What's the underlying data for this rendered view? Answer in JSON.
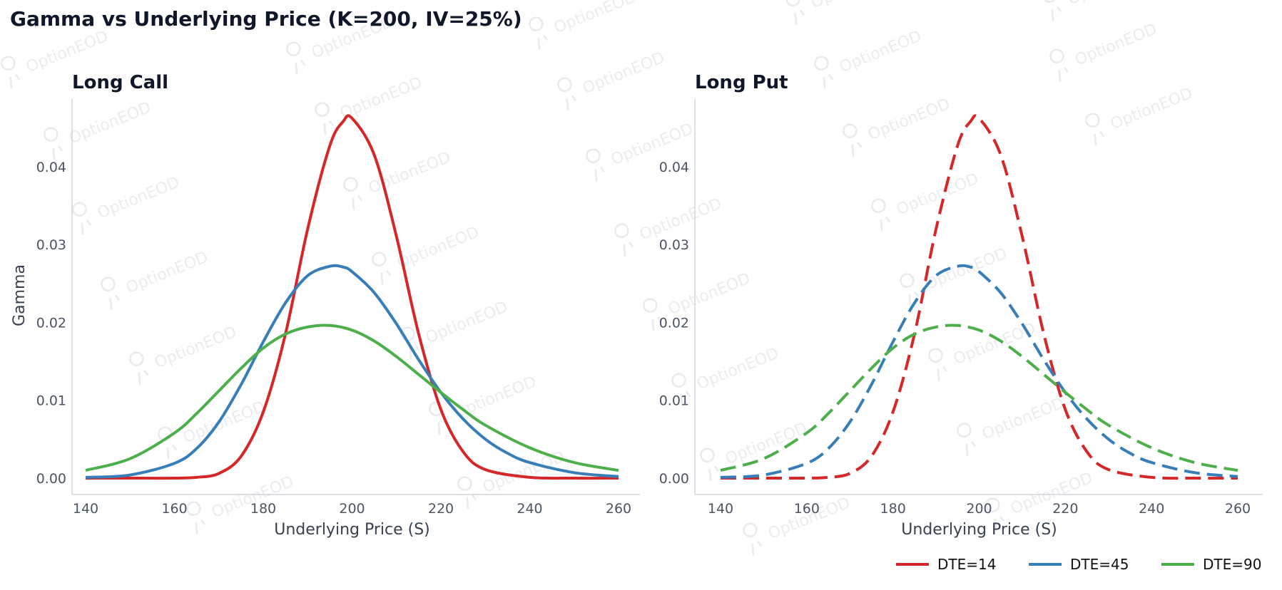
{
  "figure": {
    "suptitle": "Gamma vs Underlying Price (K=200, IV=25%)",
    "watermark": "OptionEOD"
  },
  "chart_data": [
    {
      "type": "line",
      "title": "Long Call",
      "xlabel": "Underlying Price (S)",
      "ylabel": "Gamma",
      "xlim": [
        134,
        262
      ],
      "ylim": [
        -0.0023,
        0.0485
      ],
      "xticks": [
        140,
        160,
        180,
        200,
        220,
        240,
        260
      ],
      "yticks": [
        0.0,
        0.01,
        0.02,
        0.03,
        0.04
      ],
      "ytick_labels": [
        "0.00",
        "0.01",
        "0.02",
        "0.03",
        "0.04"
      ],
      "line_style": "solid",
      "grid": false,
      "series": [
        {
          "name": "DTE=14",
          "color": "#d62728",
          "x": [
            140,
            150,
            160,
            165,
            170,
            175,
            180,
            185,
            190,
            195,
            198,
            200,
            205,
            210,
            215,
            220,
            225,
            230,
            240,
            250,
            260
          ],
          "y": [
            0,
            0,
            0.0,
            0.0001,
            0.0006,
            0.0028,
            0.0085,
            0.0185,
            0.032,
            0.0427,
            0.0458,
            0.0462,
            0.0415,
            0.031,
            0.0185,
            0.0088,
            0.0034,
            0.0011,
            0.0001,
            0,
            0
          ]
        },
        {
          "name": "DTE=45",
          "color": "#377eb8",
          "x": [
            140,
            150,
            160,
            165,
            170,
            175,
            180,
            185,
            190,
            195,
            198,
            200,
            205,
            210,
            215,
            220,
            225,
            230,
            235,
            240,
            250,
            260
          ],
          "y": [
            0.0001,
            0.0004,
            0.0019,
            0.0038,
            0.0072,
            0.012,
            0.0175,
            0.0225,
            0.026,
            0.0272,
            0.0271,
            0.0265,
            0.0238,
            0.0198,
            0.0152,
            0.011,
            0.0076,
            0.005,
            0.0032,
            0.002,
            0.0007,
            0.0002
          ]
        },
        {
          "name": "DTE=90",
          "color": "#4daf4a",
          "x": [
            140,
            150,
            160,
            165,
            170,
            175,
            180,
            185,
            190,
            195,
            200,
            205,
            210,
            215,
            220,
            225,
            230,
            240,
            250,
            260
          ],
          "y": [
            0.001,
            0.0025,
            0.0058,
            0.0083,
            0.0112,
            0.0141,
            0.0167,
            0.0185,
            0.0194,
            0.0196,
            0.019,
            0.0176,
            0.0156,
            0.0133,
            0.011,
            0.0088,
            0.0068,
            0.0039,
            0.002,
            0.001
          ]
        }
      ]
    },
    {
      "type": "line",
      "title": "Long Put",
      "xlabel": "Underlying Price (S)",
      "ylabel": "",
      "xlim": [
        134,
        262
      ],
      "ylim": [
        -0.0023,
        0.0485
      ],
      "xticks": [
        140,
        160,
        180,
        200,
        220,
        240,
        260
      ],
      "yticks": [
        0.0,
        0.01,
        0.02,
        0.03,
        0.04
      ],
      "ytick_labels": [
        "0.00",
        "0.01",
        "0.02",
        "0.03",
        "0.04"
      ],
      "line_style": "dashed",
      "grid": false,
      "legend": "bottom-right",
      "series": [
        {
          "name": "DTE=14",
          "color": "#d62728",
          "x": [
            140,
            150,
            160,
            165,
            170,
            175,
            180,
            185,
            190,
            195,
            198,
            200,
            205,
            210,
            215,
            220,
            225,
            230,
            240,
            250,
            260
          ],
          "y": [
            0,
            0,
            0.0,
            0.0001,
            0.0006,
            0.0028,
            0.0085,
            0.0185,
            0.032,
            0.0427,
            0.0458,
            0.0462,
            0.0415,
            0.031,
            0.0185,
            0.0088,
            0.0034,
            0.0011,
            0.0001,
            0,
            0
          ]
        },
        {
          "name": "DTE=45",
          "color": "#377eb8",
          "x": [
            140,
            150,
            160,
            165,
            170,
            175,
            180,
            185,
            190,
            195,
            198,
            200,
            205,
            210,
            215,
            220,
            225,
            230,
            235,
            240,
            250,
            260
          ],
          "y": [
            0.0001,
            0.0004,
            0.0019,
            0.0038,
            0.0072,
            0.012,
            0.0175,
            0.0225,
            0.026,
            0.0272,
            0.0271,
            0.0265,
            0.0238,
            0.0198,
            0.0152,
            0.011,
            0.0076,
            0.005,
            0.0032,
            0.002,
            0.0007,
            0.0002
          ]
        },
        {
          "name": "DTE=90",
          "color": "#4daf4a",
          "x": [
            140,
            150,
            160,
            165,
            170,
            175,
            180,
            185,
            190,
            195,
            200,
            205,
            210,
            215,
            220,
            225,
            230,
            240,
            250,
            260
          ],
          "y": [
            0.001,
            0.0025,
            0.0058,
            0.0083,
            0.0112,
            0.0141,
            0.0167,
            0.0185,
            0.0194,
            0.0196,
            0.019,
            0.0176,
            0.0156,
            0.0133,
            0.011,
            0.0088,
            0.0068,
            0.0039,
            0.002,
            0.001
          ]
        }
      ]
    }
  ]
}
